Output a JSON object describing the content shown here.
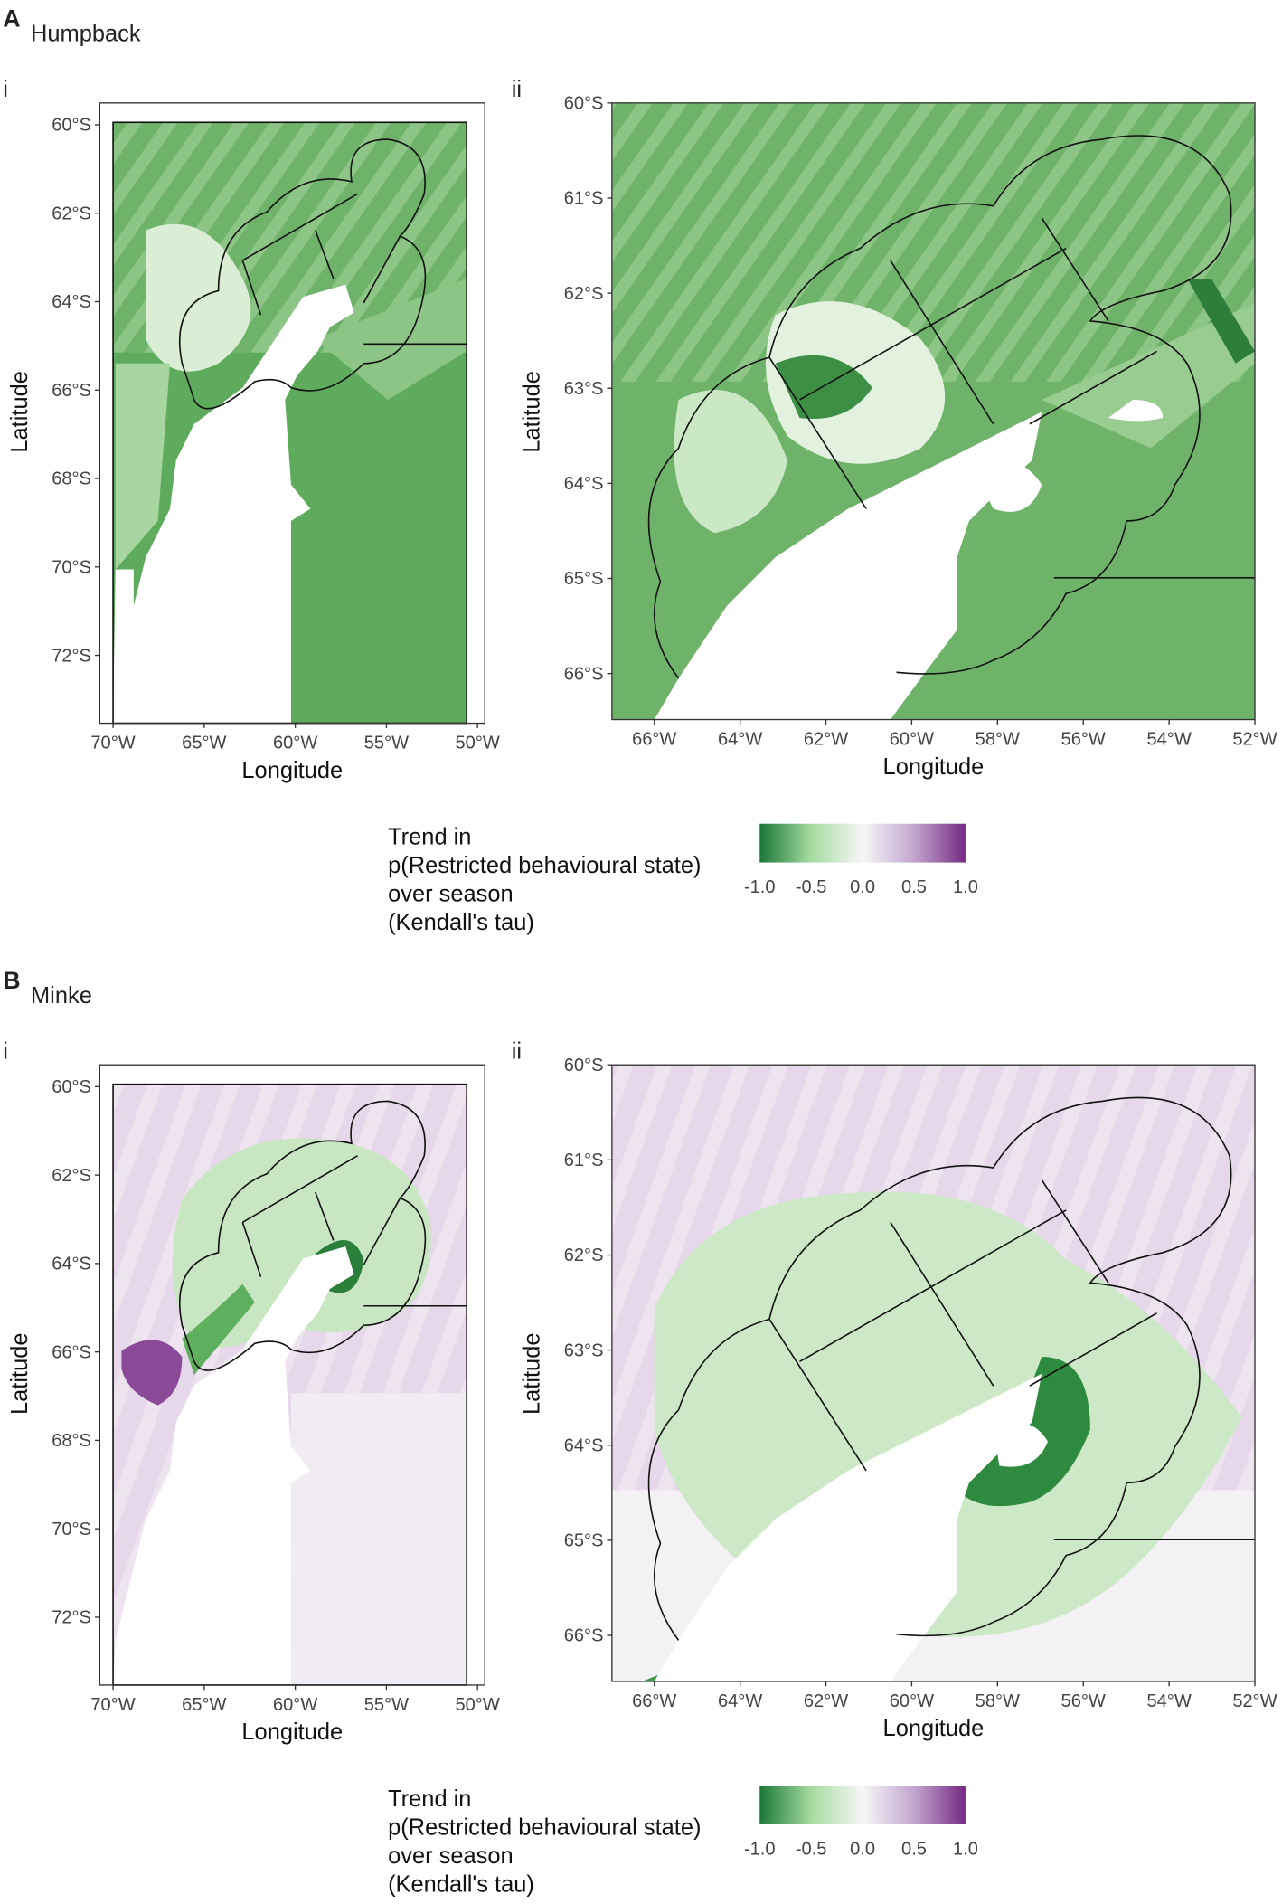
{
  "panels": [
    {
      "letter": "A",
      "species": "Humpback",
      "maps": [
        {
          "label": "i",
          "yticks": [
            "60°S",
            "62°S",
            "64°S",
            "66°S",
            "68°S",
            "70°S",
            "72°S"
          ],
          "xticks": [
            "70°W",
            "65°W",
            "60°W",
            "55°W",
            "50°W"
          ],
          "xlabel": "Longitude",
          "ylabel": "Latitude"
        },
        {
          "label": "ii",
          "yticks": [
            "60°S",
            "61°S",
            "62°S",
            "63°S",
            "64°S",
            "65°S",
            "66°S"
          ],
          "xticks": [
            "66°W",
            "64°W",
            "62°W",
            "60°W",
            "58°W",
            "56°W",
            "54°W",
            "52°W"
          ],
          "xlabel": "Longitude",
          "ylabel": "Latitude"
        }
      ],
      "legend": {
        "title": [
          "Trend in",
          "p(Restricted behavioural state)",
          "over season",
          "(Kendall's tau)"
        ],
        "ticks": [
          "-1.0",
          "-0.5",
          "0.0",
          "0.5",
          "1.0"
        ]
      }
    },
    {
      "letter": "B",
      "species": "Minke",
      "maps": [
        {
          "label": "i",
          "yticks": [
            "60°S",
            "62°S",
            "64°S",
            "66°S",
            "68°S",
            "70°S",
            "72°S"
          ],
          "xticks": [
            "70°W",
            "65°W",
            "60°W",
            "55°W",
            "50°W"
          ],
          "xlabel": "Longitude",
          "ylabel": "Latitude"
        },
        {
          "label": "ii",
          "yticks": [
            "60°S",
            "61°S",
            "62°S",
            "63°S",
            "64°S",
            "65°S",
            "66°S"
          ],
          "xticks": [
            "66°W",
            "64°W",
            "62°W",
            "60°W",
            "58°W",
            "56°W",
            "54°W",
            "52°W"
          ],
          "xlabel": "Longitude",
          "ylabel": "Latitude"
        }
      ],
      "legend": {
        "title": [
          "Trend in",
          "p(Restricted behavioural state)",
          "over season",
          "(Kendall's tau)"
        ],
        "ticks": [
          "-1.0",
          "-0.5",
          "0.0",
          "0.5",
          "1.0"
        ]
      }
    }
  ]
}
